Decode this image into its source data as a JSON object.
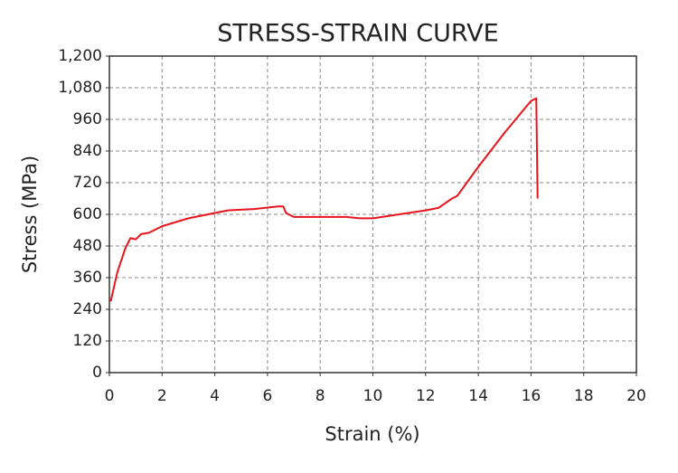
{
  "chart_data": {
    "type": "line",
    "title": "STRESS-STRAIN CURVE",
    "x_label": "Strain (%)",
    "y_label": "Stress (MPa)",
    "x": [
      0.05,
      0.3,
      0.6,
      0.8,
      1.0,
      1.2,
      1.5,
      2,
      3,
      4,
      4.5,
      5.5,
      6.4,
      6.6,
      6.7,
      7,
      8,
      9,
      9.5,
      10,
      11,
      12,
      12.5,
      13,
      13.2,
      14,
      15,
      15.5,
      16,
      16.2,
      16.25
    ],
    "values": [
      270,
      380,
      470,
      510,
      505,
      525,
      530,
      555,
      585,
      605,
      615,
      620,
      630,
      630,
      605,
      590,
      590,
      590,
      585,
      585,
      600,
      615,
      625,
      660,
      670,
      780,
      910,
      970,
      1030,
      1040,
      660
    ],
    "color": "#e8141c",
    "xlim": [
      0,
      20
    ],
    "xticks": [
      0,
      2,
      4,
      6,
      8,
      10,
      12,
      14,
      16,
      18,
      20
    ],
    "ylim": [
      0,
      1200
    ],
    "yticks": [
      0,
      120,
      240,
      360,
      480,
      600,
      720,
      840,
      960,
      {
        "value": 1080,
        "label": "1,080"
      },
      {
        "value": 1200,
        "label": "1,200"
      }
    ],
    "grid": true
  }
}
